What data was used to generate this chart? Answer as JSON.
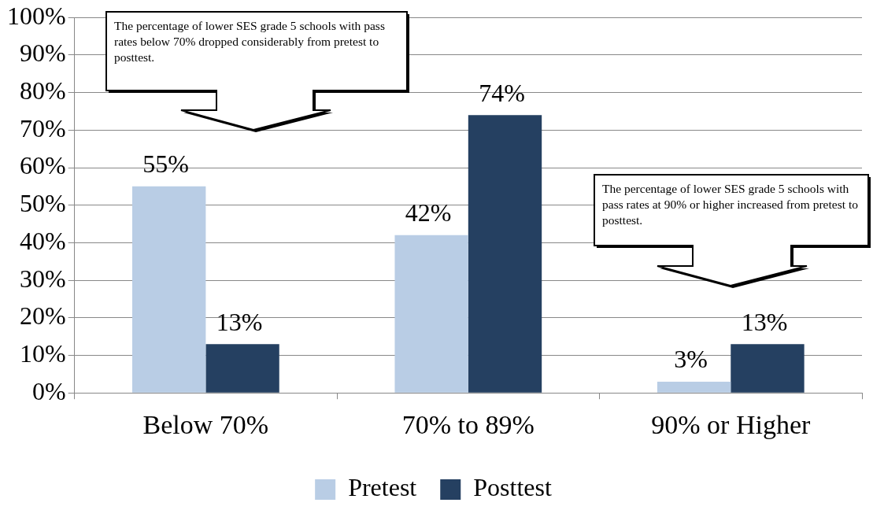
{
  "chart_data": {
    "type": "bar",
    "categories": [
      "Below 70%",
      "70% to 89%",
      "90% or Higher"
    ],
    "series": [
      {
        "name": "Pretest",
        "color": "#b9cde5",
        "values": [
          55,
          42,
          3
        ],
        "value_labels": [
          "55%",
          "42%",
          "3%"
        ]
      },
      {
        "name": "Posttest",
        "color": "#254061",
        "values": [
          13,
          74,
          13
        ],
        "value_labels": [
          "13%",
          "74%",
          "13%"
        ]
      }
    ],
    "ylim": [
      0,
      100
    ],
    "yticks": [
      {
        "value": 0,
        "label": "0%"
      },
      {
        "value": 10,
        "label": "10%"
      },
      {
        "value": 20,
        "label": "20%"
      },
      {
        "value": 30,
        "label": "30%"
      },
      {
        "value": 40,
        "label": "40%"
      },
      {
        "value": 50,
        "label": "50%"
      },
      {
        "value": 60,
        "label": "60%"
      },
      {
        "value": 70,
        "label": "70%"
      },
      {
        "value": 80,
        "label": "80%"
      },
      {
        "value": 90,
        "label": "90%"
      },
      {
        "value": 100,
        "label": "100%"
      }
    ],
    "grid": "y",
    "legend": "bottom",
    "annotations": [
      "The percentage of lower SES grade 5 schools with pass rates below 70% dropped considerably from pretest to posttest.",
      "The percentage of lower SES grade 5 schools with pass rates at 90% or higher increased from pretest to posttest."
    ]
  }
}
